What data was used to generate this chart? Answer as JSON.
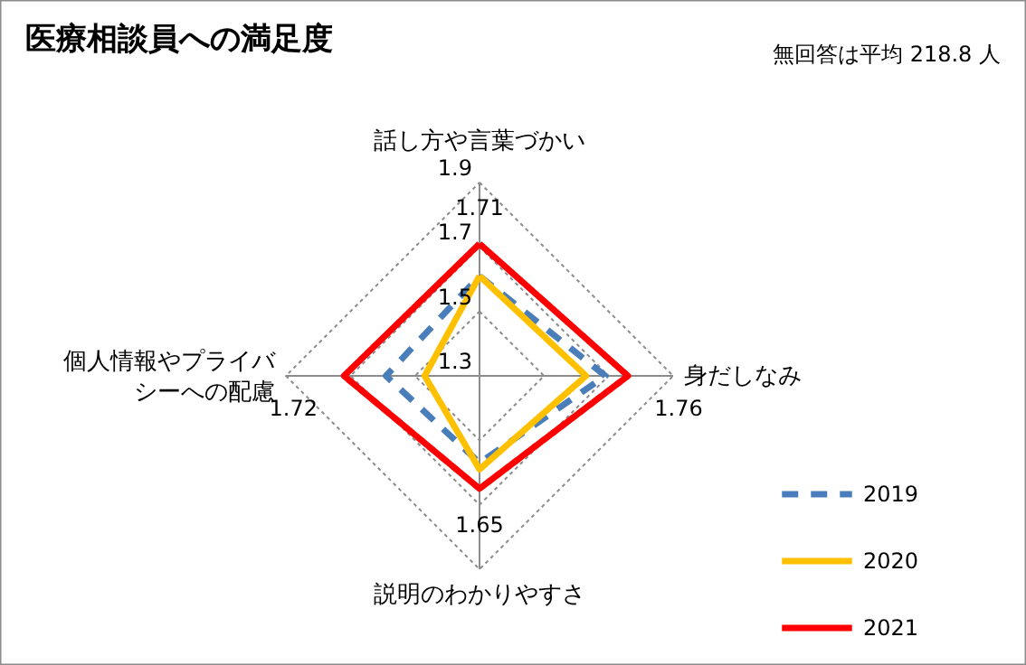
{
  "chart_data": {
    "type": "radar",
    "title": "医療相談員への満足度",
    "annotations": [
      "無回答は平均 218.8 人"
    ],
    "categories": [
      "話し方や言葉づかい",
      "身だしなみ",
      "説明のわかりやすさ",
      "個人情報やプライバシーへの配慮"
    ],
    "ylim": [
      1.3,
      1.9
    ],
    "yticks": [
      1.3,
      1.5,
      1.7,
      1.9
    ],
    "grid": true,
    "legend": "bottom right",
    "series": [
      {
        "name": "2019",
        "color": "#4a7ebb",
        "line_style": "dashed",
        "values": [
          1.61,
          1.69,
          1.57,
          1.59
        ]
      },
      {
        "name": "2020",
        "color": "#ffc000",
        "values": [
          1.61,
          1.63,
          1.59,
          1.47
        ]
      },
      {
        "name": "2021",
        "color": "#ff0000",
        "values": [
          1.71,
          1.76,
          1.65,
          1.72
        ],
        "value_labels": [
          "1.71",
          "1.76",
          "1.65",
          "1.72"
        ]
      }
    ]
  }
}
